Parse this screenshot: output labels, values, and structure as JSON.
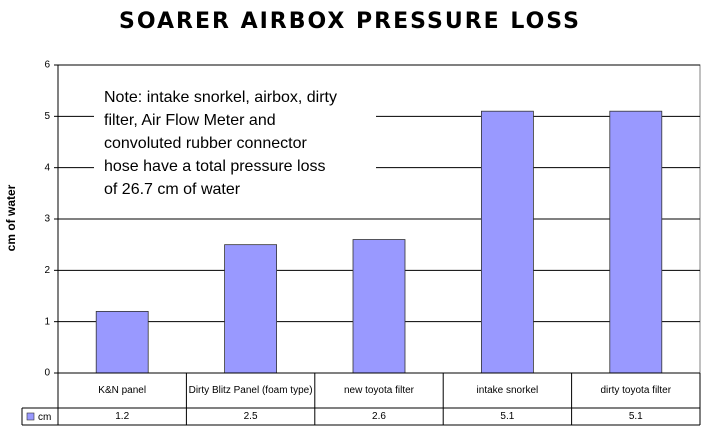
{
  "chart_data": {
    "type": "bar",
    "title": "Soarer Airbox Pressure Loss",
    "y_label": "cm of water",
    "annotation": [
      "Note: intake snorkel, airbox, dirty",
      "filter, Air Flow Meter and",
      "convoluted rubber connector",
      "hose have a  total pressure loss",
      "of 26.7 cm of water"
    ],
    "categories": [
      "K&N panel",
      "Dirty Blitz Panel (foam type)",
      "new toyota filter",
      "intake snorkel",
      "dirty toyota filter"
    ],
    "series": [
      {
        "name": "cm",
        "color": "#9999ff",
        "values": [
          1.2,
          2.5,
          2.6,
          5.1,
          5.1
        ]
      }
    ],
    "ylim": [
      0,
      6
    ],
    "yticks": [
      0,
      1,
      2,
      3,
      4,
      5,
      6
    ],
    "grid": true,
    "data_table": true
  }
}
